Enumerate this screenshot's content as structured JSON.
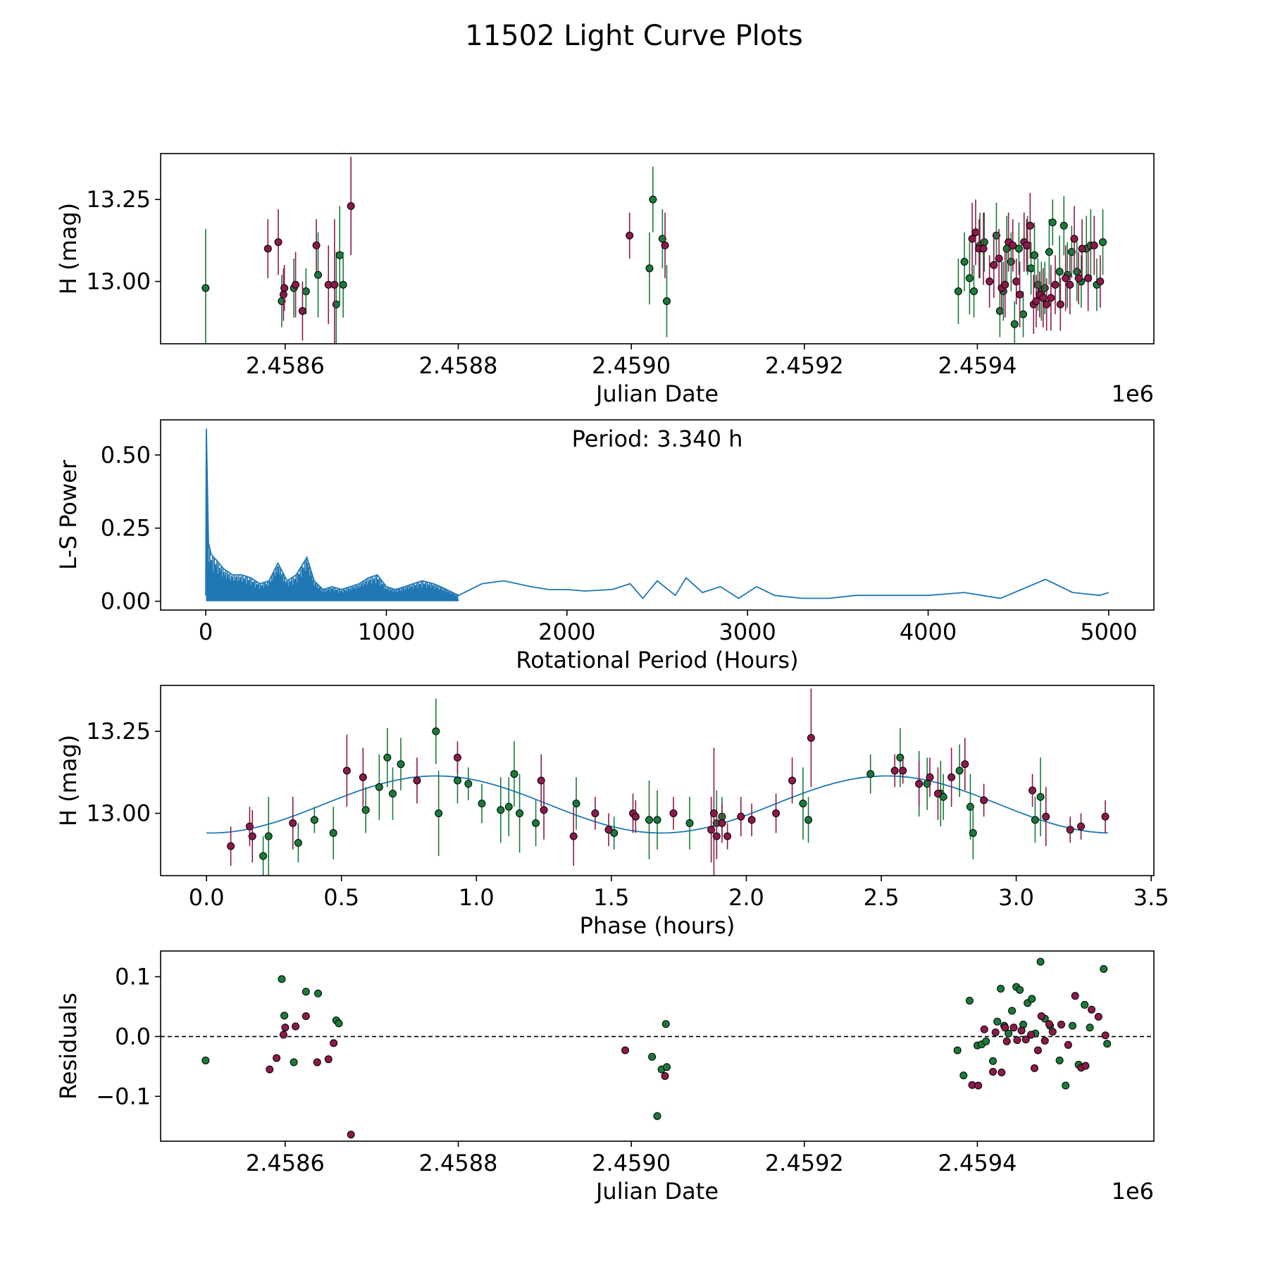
{
  "figure": {
    "title": "11502 Light Curve Plots"
  },
  "colors": {
    "r_band": "#8b1a4a",
    "g_band": "#1a7a3a",
    "fit": "#1f77b4",
    "periodogram": "#1f77b4",
    "marker_edge": "#000000"
  },
  "chart_data": [
    {
      "type": "scatter",
      "panel": "light-curve",
      "xlabel": "Julian Date",
      "ylabel": "H (mag)",
      "offset_label": "1e6",
      "xlim": [
        2458456,
        2459604
      ],
      "ylim": [
        12.81,
        13.39
      ],
      "xticks": [
        2458600,
        2458800,
        2459000,
        2459200,
        2459400
      ],
      "xtick_labels": [
        "2.4586",
        "2.4588",
        "2.4590",
        "2.4592",
        "2.4594"
      ],
      "yticks": [
        13.0,
        13.25
      ],
      "ytick_labels": [
        "13.00",
        "13.25"
      ],
      "grid": false,
      "series": [
        {
          "color": "g_band",
          "x": [
            2458508,
            2458596,
            2458610,
            2458624,
            2458638,
            2458659,
            2458663,
            2458667,
            2459021,
            2459025,
            2459036,
            2459041,
            2459378,
            2459385,
            2459391,
            2459396,
            2459403,
            2459408,
            2459422,
            2459426,
            2459430,
            2459434,
            2459439,
            2459443,
            2459448,
            2459453,
            2459458,
            2459462,
            2459466,
            2459470,
            2459474,
            2459478,
            2459483,
            2459487,
            2459495,
            2459500,
            2459504,
            2459509,
            2459515,
            2459520,
            2459526,
            2459531,
            2459538,
            2459545
          ],
          "y": [
            12.98,
            12.94,
            12.98,
            12.97,
            13.02,
            12.93,
            13.08,
            12.99,
            13.04,
            13.25,
            13.13,
            12.94,
            12.97,
            13.06,
            13.01,
            12.97,
            13.11,
            13.12,
            13.14,
            12.91,
            12.97,
            13.1,
            13.06,
            12.87,
            13.1,
            12.9,
            13.11,
            13.04,
            13.08,
            12.99,
            12.97,
            12.98,
            13.09,
            13.18,
            13.03,
            13.17,
            13.02,
            13.09,
            13.03,
            13.0,
            13.1,
            13.11,
            12.99,
            13.12
          ],
          "err": [
            0.18,
            0.08,
            0.09,
            0.07,
            0.13,
            0.16,
            0.15,
            0.1,
            0.11,
            0.1,
            0.09,
            0.11,
            0.1,
            0.09,
            0.11,
            0.08,
            0.1,
            0.09,
            0.1,
            0.08,
            0.09,
            0.1,
            0.09,
            0.07,
            0.08,
            0.07,
            0.09,
            0.08,
            0.1,
            0.08,
            0.09,
            0.08,
            0.1,
            0.07,
            0.11,
            0.09,
            0.1,
            0.08,
            0.09,
            0.08,
            0.1,
            0.11,
            0.08,
            0.1
          ]
        },
        {
          "color": "r_band",
          "x": [
            2458580,
            2458592,
            2458598,
            2458599,
            2458612,
            2458620,
            2458636,
            2458650,
            2458657,
            2458676,
            2458998,
            2459039,
            2459394,
            2459398,
            2459402,
            2459407,
            2459414,
            2459419,
            2459425,
            2459428,
            2459432,
            2459436,
            2459441,
            2459445,
            2459449,
            2459454,
            2459457,
            2459461,
            2459465,
            2459468,
            2459472,
            2459476,
            2459480,
            2459485,
            2459490,
            2459496,
            2459502,
            2459507,
            2459512,
            2459517,
            2459521,
            2459528,
            2459535,
            2459542
          ],
          "y": [
            13.1,
            13.12,
            12.96,
            12.98,
            12.99,
            12.91,
            13.11,
            12.99,
            12.99,
            13.23,
            13.14,
            13.11,
            13.13,
            13.15,
            13.1,
            13.1,
            13.0,
            13.05,
            13.07,
            12.98,
            12.99,
            13.12,
            13.11,
            13.0,
            12.96,
            13.12,
            13.11,
            13.17,
            12.93,
            12.94,
            12.96,
            12.95,
            12.93,
            12.95,
            12.99,
            12.93,
            13.01,
            12.99,
            13.13,
            13.01,
            13.1,
            13.01,
            13.11,
            13.0
          ],
          "err": [
            0.09,
            0.1,
            0.08,
            0.07,
            0.1,
            0.09,
            0.08,
            0.12,
            0.2,
            0.15,
            0.07,
            0.1,
            0.11,
            0.1,
            0.09,
            0.11,
            0.08,
            0.1,
            0.09,
            0.08,
            0.1,
            0.09,
            0.08,
            0.07,
            0.1,
            0.09,
            0.08,
            0.1,
            0.09,
            0.08,
            0.07,
            0.09,
            0.08,
            0.1,
            0.09,
            0.08,
            0.1,
            0.09,
            0.1,
            0.08,
            0.09,
            0.1,
            0.09,
            0.08
          ]
        }
      ]
    },
    {
      "type": "line",
      "panel": "periodogram",
      "xlabel": "Rotational Period (Hours)",
      "ylabel": "L-S Power",
      "annotation": "Period: 3.340 h",
      "xlim": [
        -250,
        5250
      ],
      "ylim": [
        -0.03,
        0.62
      ],
      "xticks": [
        0,
        1000,
        2000,
        3000,
        4000,
        5000
      ],
      "xtick_labels": [
        "0",
        "1000",
        "2000",
        "3000",
        "4000",
        "5000"
      ],
      "yticks": [
        0.0,
        0.25,
        0.5
      ],
      "ytick_labels": [
        "0.00",
        "0.25",
        "0.50"
      ],
      "grid": false,
      "series": [
        {
          "color": "periodogram",
          "x": [
            0,
            3.34,
            15,
            30,
            60,
            100,
            150,
            200,
            250,
            300,
            350,
            400,
            450,
            500,
            560,
            600,
            650,
            700,
            750,
            800,
            850,
            900,
            950,
            1000,
            1050,
            1100,
            1150,
            1200,
            1260,
            1300,
            1400,
            1530,
            1650,
            1800,
            1900,
            2000,
            2100,
            2250,
            2350,
            2420,
            2500,
            2600,
            2660,
            2750,
            2850,
            2950,
            3050,
            3150,
            3300,
            3450,
            3600,
            3850,
            4000,
            4200,
            4400,
            4650,
            4800,
            4950,
            5000
          ],
          "y": [
            0.02,
            0.59,
            0.2,
            0.16,
            0.14,
            0.11,
            0.09,
            0.09,
            0.08,
            0.06,
            0.07,
            0.13,
            0.07,
            0.09,
            0.15,
            0.07,
            0.04,
            0.05,
            0.04,
            0.05,
            0.06,
            0.08,
            0.09,
            0.05,
            0.04,
            0.05,
            0.06,
            0.07,
            0.06,
            0.05,
            0.02,
            0.06,
            0.07,
            0.05,
            0.04,
            0.04,
            0.035,
            0.04,
            0.06,
            0.01,
            0.07,
            0.02,
            0.08,
            0.03,
            0.05,
            0.01,
            0.05,
            0.02,
            0.01,
            0.01,
            0.02,
            0.02,
            0.02,
            0.03,
            0.01,
            0.075,
            0.03,
            0.02,
            0.03
          ]
        }
      ]
    },
    {
      "type": "scatter",
      "panel": "phased-light-curve",
      "xlabel": "Phase (hours)",
      "ylabel": "H (mag)",
      "xlim": [
        -0.17,
        3.51
      ],
      "ylim": [
        12.81,
        13.39
      ],
      "xticks": [
        0.0,
        0.5,
        1.0,
        1.5,
        2.0,
        2.5,
        3.0,
        3.5
      ],
      "xtick_labels": [
        "0.0",
        "0.5",
        "1.0",
        "1.5",
        "2.0",
        "2.5",
        "3.0",
        "3.5"
      ],
      "yticks": [
        13.0,
        13.25
      ],
      "ytick_labels": [
        "13.00",
        "13.25"
      ],
      "grid": false,
      "fit": {
        "color": "fit",
        "period_hours": 3.34,
        "mean": 13.027,
        "amplitude": 0.087,
        "peak_phase": 0.85
      },
      "series": [
        {
          "color": "g_band",
          "x": [
            0.21,
            0.23,
            0.34,
            0.4,
            0.47,
            0.59,
            0.64,
            0.67,
            0.69,
            0.72,
            0.85,
            0.86,
            0.93,
            0.97,
            1.02,
            1.09,
            1.12,
            1.14,
            1.16,
            1.22,
            1.37,
            1.51,
            1.64,
            1.67,
            1.79,
            1.89,
            1.91,
            2.21,
            2.23,
            2.46,
            2.57,
            2.64,
            2.67,
            2.72,
            2.73,
            2.79,
            2.83,
            2.84,
            3.07,
            3.09
          ],
          "y": [
            12.87,
            12.93,
            12.91,
            12.98,
            12.94,
            13.01,
            13.08,
            13.17,
            13.06,
            13.15,
            13.25,
            13.0,
            13.1,
            13.09,
            13.03,
            13.01,
            13.02,
            13.12,
            13.0,
            12.97,
            13.03,
            12.94,
            12.98,
            12.98,
            12.97,
            12.97,
            12.99,
            13.03,
            12.98,
            13.12,
            13.17,
            13.09,
            13.09,
            13.06,
            13.05,
            13.13,
            13.02,
            12.94,
            12.98,
            13.05
          ],
          "err": [
            0.06,
            0.12,
            0.06,
            0.04,
            0.08,
            0.07,
            0.1,
            0.09,
            0.08,
            0.08,
            0.1,
            0.13,
            0.07,
            0.05,
            0.06,
            0.1,
            0.09,
            0.1,
            0.12,
            0.07,
            0.08,
            0.05,
            0.12,
            0.09,
            0.08,
            0.1,
            0.06,
            0.11,
            0.07,
            0.06,
            0.09,
            0.1,
            0.08,
            0.1,
            0.07,
            0.08,
            0.1,
            0.08,
            0.07,
            0.12
          ]
        },
        {
          "color": "r_band",
          "x": [
            0.09,
            0.16,
            0.17,
            0.32,
            0.52,
            0.58,
            0.78,
            0.93,
            1.24,
            1.25,
            1.36,
            1.44,
            1.49,
            1.58,
            1.59,
            1.73,
            1.87,
            1.88,
            1.89,
            1.91,
            1.93,
            1.98,
            2.02,
            2.11,
            2.17,
            2.24,
            2.55,
            2.58,
            2.64,
            2.68,
            2.71,
            2.76,
            2.81,
            2.88,
            3.06,
            3.11,
            3.2,
            3.24,
            3.33
          ],
          "y": [
            12.9,
            12.96,
            12.93,
            12.97,
            13.13,
            13.11,
            13.1,
            13.17,
            13.1,
            13.01,
            12.93,
            13.0,
            12.95,
            13.0,
            12.99,
            13.0,
            12.95,
            13.0,
            12.93,
            12.97,
            12.93,
            12.99,
            12.98,
            13.0,
            13.1,
            13.23,
            13.13,
            13.13,
            13.09,
            13.11,
            13.06,
            13.11,
            13.15,
            13.04,
            13.07,
            12.99,
            12.95,
            12.96,
            12.99
          ],
          "err": [
            0.06,
            0.06,
            0.08,
            0.08,
            0.11,
            0.09,
            0.07,
            0.05,
            0.08,
            0.09,
            0.09,
            0.05,
            0.05,
            0.06,
            0.05,
            0.05,
            0.1,
            0.2,
            0.07,
            0.06,
            0.04,
            0.06,
            0.05,
            0.06,
            0.07,
            0.15,
            0.05,
            0.04,
            0.07,
            0.06,
            0.08,
            0.09,
            0.08,
            0.05,
            0.05,
            0.09,
            0.04,
            0.04,
            0.05
          ]
        }
      ]
    },
    {
      "type": "scatter",
      "panel": "residuals",
      "xlabel": "Julian Date",
      "ylabel": "Residuals",
      "offset_label": "1e6",
      "xlim": [
        2458456,
        2459604
      ],
      "ylim": [
        -0.175,
        0.143
      ],
      "xticks": [
        2458600,
        2458800,
        2459000,
        2459200,
        2459400
      ],
      "xtick_labels": [
        "2.4586",
        "2.4588",
        "2.4590",
        "2.4592",
        "2.4594"
      ],
      "yticks": [
        -0.1,
        0.0,
        0.1
      ],
      "ytick_labels": [
        "−0.1",
        "0.0",
        "0.1"
      ],
      "reference_line": 0.0,
      "grid": false,
      "series": [
        {
          "color": "g_band",
          "x": [
            2458508,
            2458596,
            2458599,
            2458610,
            2458624,
            2458638,
            2458659,
            2458662,
            2459024,
            2459030,
            2459035,
            2459040,
            2459041,
            2459377,
            2459384,
            2459391,
            2459400,
            2459405,
            2459410,
            2459418,
            2459423,
            2459427,
            2459431,
            2459436,
            2459440,
            2459445,
            2459449,
            2459453,
            2459458,
            2459463,
            2459467,
            2459473,
            2459478,
            2459484,
            2459495,
            2459502,
            2459510,
            2459517,
            2459524,
            2459530,
            2459546,
            2459550
          ],
          "y": [
            -0.04,
            0.096,
            0.035,
            -0.043,
            0.075,
            0.072,
            0.027,
            0.022,
            -0.034,
            -0.133,
            -0.055,
            0.021,
            -0.051,
            -0.023,
            -0.065,
            0.06,
            -0.015,
            -0.013,
            -0.008,
            -0.041,
            0.025,
            0.08,
            0.018,
            0.005,
            0.043,
            0.083,
            0.078,
            0.02,
            0.056,
            0.063,
            0.005,
            0.125,
            0.03,
            0.018,
            -0.04,
            -0.082,
            0.018,
            -0.047,
            0.053,
            0.015,
            0.113,
            -0.012
          ],
          "err": []
        },
        {
          "color": "r_band",
          "x": [
            2458582,
            2458590,
            2458598,
            2458600,
            2458612,
            2458624,
            2458637,
            2458650,
            2458656,
            2458676,
            2458993,
            2459039,
            2459394,
            2459401,
            2459408,
            2459418,
            2459421,
            2459428,
            2459432,
            2459434,
            2459442,
            2459446,
            2459451,
            2459456,
            2459462,
            2459466,
            2459470,
            2459474,
            2459478,
            2459483,
            2459487,
            2459497,
            2459505,
            2459513,
            2459520,
            2459525,
            2459532,
            2459540,
            2459548
          ],
          "y": [
            -0.055,
            -0.036,
            0.003,
            0.015,
            0.017,
            0.034,
            -0.043,
            -0.038,
            -0.011,
            -0.164,
            -0.023,
            -0.066,
            -0.081,
            -0.082,
            0.012,
            -0.059,
            0.007,
            -0.06,
            0.015,
            -0.008,
            0.015,
            -0.006,
            0.01,
            -0.005,
            0.003,
            -0.053,
            -0.023,
            0.034,
            -0.007,
            0.021,
            0.008,
            0.02,
            -0.014,
            0.068,
            -0.052,
            -0.049,
            0.045,
            0.033,
            0.002
          ],
          "err": []
        }
      ]
    }
  ]
}
